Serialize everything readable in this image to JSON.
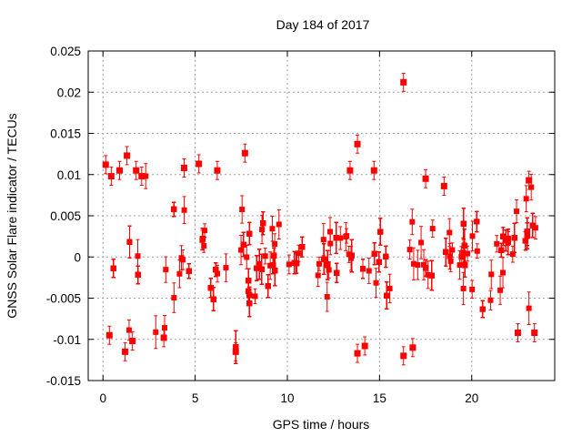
{
  "chart_data": {
    "type": "scatter",
    "title": "Day 184 of 2017",
    "xlabel": "GPS time / hours",
    "ylabel": "GNSS Solar Flare indicator / TECUs",
    "xlim": [
      -0.8,
      24.5
    ],
    "ylim": [
      -0.015,
      0.025
    ],
    "x_ticks": [
      0,
      5,
      10,
      15,
      20
    ],
    "x_tick_labels": [
      "0",
      "5",
      "10",
      "15",
      "20"
    ],
    "y_ticks": [
      -0.015,
      -0.01,
      -0.005,
      0,
      0.005,
      0.01,
      0.015,
      0.02,
      0.025
    ],
    "y_tick_labels": [
      "-0.015",
      "-0.01",
      "-0.005",
      "0",
      "0.005",
      "0.01",
      "0.015",
      "0.02",
      "0.025"
    ],
    "grid": true,
    "series_color": "#ff0000",
    "series": [
      {
        "name": "Solar flare indicator",
        "has_error_bars": true,
        "x_range": [
          0,
          23.9
        ],
        "typical_spread_by_hour": [
          {
            "hour": 0,
            "sd": 0.0052
          },
          {
            "hour": 2,
            "sd": 0.0055
          },
          {
            "hour": 4,
            "sd": 0.005
          },
          {
            "hour": 6,
            "sd": 0.0053
          },
          {
            "hour": 8,
            "sd": 0.0045
          },
          {
            "hour": 9,
            "sd": 0.0035
          },
          {
            "hour": 10,
            "sd": 0.0025
          },
          {
            "hour": 12,
            "sd": 0.0028
          },
          {
            "hour": 14,
            "sd": 0.0036
          },
          {
            "hour": 16,
            "sd": 0.0035
          },
          {
            "hour": 18,
            "sd": 0.0028
          },
          {
            "hour": 20,
            "sd": 0.0025
          },
          {
            "hour": 22,
            "sd": 0.0033
          },
          {
            "hour": 23.9,
            "sd": 0.0042
          }
        ],
        "notable_points": [
          {
            "x": 0.15,
            "y": 0.0112
          },
          {
            "x": 0.45,
            "y": 0.0098
          },
          {
            "x": 0.9,
            "y": 0.0105
          },
          {
            "x": 1.3,
            "y": 0.0123
          },
          {
            "x": 1.8,
            "y": 0.0105
          },
          {
            "x": 2.1,
            "y": 0.0098
          },
          {
            "x": 4.4,
            "y": 0.0108
          },
          {
            "x": 5.2,
            "y": 0.0113
          },
          {
            "x": 6.2,
            "y": 0.0105
          },
          {
            "x": 7.7,
            "y": 0.0126
          },
          {
            "x": 0.35,
            "y": -0.0095
          },
          {
            "x": 1.2,
            "y": -0.0115
          },
          {
            "x": 1.6,
            "y": -0.0102
          },
          {
            "x": 3.3,
            "y": -0.0098
          },
          {
            "x": 7.2,
            "y": -0.0115
          },
          {
            "x": 13.4,
            "y": 0.0105
          },
          {
            "x": 13.8,
            "y": 0.0137
          },
          {
            "x": 14.7,
            "y": 0.0105
          },
          {
            "x": 16.3,
            "y": 0.0212
          },
          {
            "x": 17.5,
            "y": 0.0095
          },
          {
            "x": 18.5,
            "y": 0.0086
          },
          {
            "x": 13.8,
            "y": -0.0117
          },
          {
            "x": 14.2,
            "y": -0.0108
          },
          {
            "x": 16.3,
            "y": -0.012
          },
          {
            "x": 16.8,
            "y": -0.011
          },
          {
            "x": 23.1,
            "y": 0.0093
          },
          {
            "x": 22.5,
            "y": -0.0092
          },
          {
            "x": 23.4,
            "y": -0.0092
          }
        ]
      }
    ]
  }
}
